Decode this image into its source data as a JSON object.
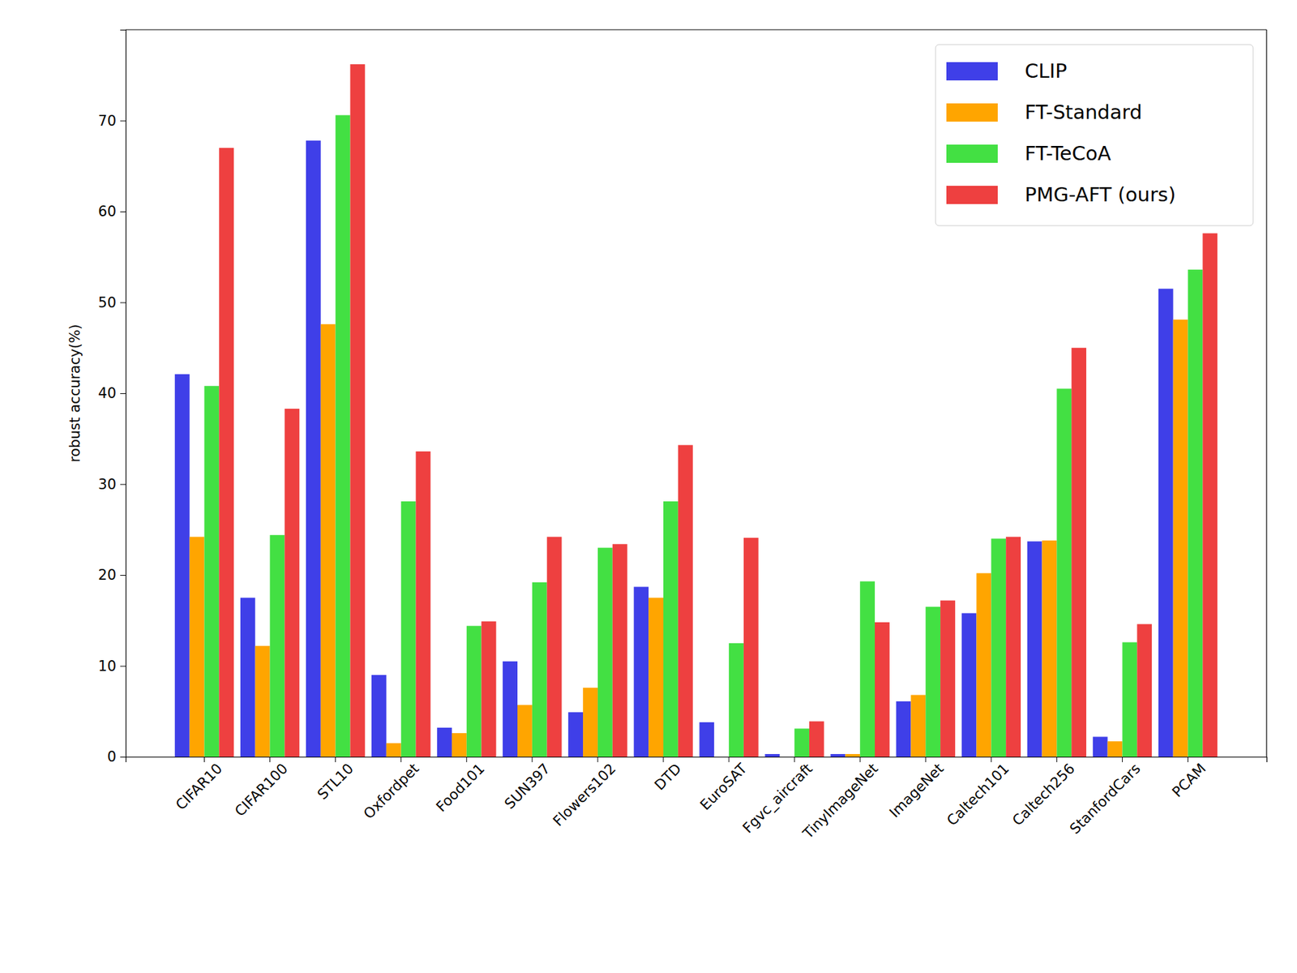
{
  "chart_data": {
    "type": "bar",
    "y_label": "robust accuracy(%)",
    "categories": [
      "CIFAR10",
      "CIFAR100",
      "STL10",
      "Oxfordpet",
      "Food101",
      "SUN397",
      "Flowers102",
      "DTD",
      "EuroSAT",
      "Fgvc_aircraft",
      "TinyImageNet",
      "ImageNet",
      "Caltech101",
      "Caltech256",
      "StanfordCars",
      "PCAM"
    ],
    "series": [
      {
        "name": "CLIP",
        "color": "#3f3fe8",
        "values": [
          42.1,
          17.5,
          67.8,
          9.0,
          3.2,
          10.5,
          4.9,
          18.7,
          3.8,
          0.3,
          0.3,
          6.1,
          15.8,
          23.7,
          2.2,
          51.5
        ]
      },
      {
        "name": "FT-Standard",
        "color": "#ffa500",
        "values": [
          24.2,
          12.2,
          47.6,
          1.5,
          2.6,
          5.7,
          7.6,
          17.5,
          0.0,
          0.0,
          0.3,
          6.8,
          20.2,
          23.8,
          1.7,
          48.1
        ]
      },
      {
        "name": "FT-TeCoA",
        "color": "#43e043",
        "values": [
          40.8,
          24.4,
          70.6,
          28.1,
          14.4,
          19.2,
          23.0,
          28.1,
          12.5,
          3.1,
          19.3,
          16.5,
          24.0,
          40.5,
          12.6,
          53.6
        ]
      },
      {
        "name": "PMG-AFT (ours)",
        "color": "#ee4040",
        "values": [
          67.0,
          38.3,
          76.2,
          33.6,
          14.9,
          24.2,
          23.4,
          34.3,
          24.1,
          3.9,
          14.8,
          17.2,
          24.2,
          45.0,
          14.6,
          57.6
        ]
      }
    ],
    "ylim": [
      0,
      80
    ],
    "yticks": [
      0,
      10,
      20,
      30,
      40,
      50,
      60,
      70
    ],
    "grid": false,
    "legend": "upper right"
  }
}
